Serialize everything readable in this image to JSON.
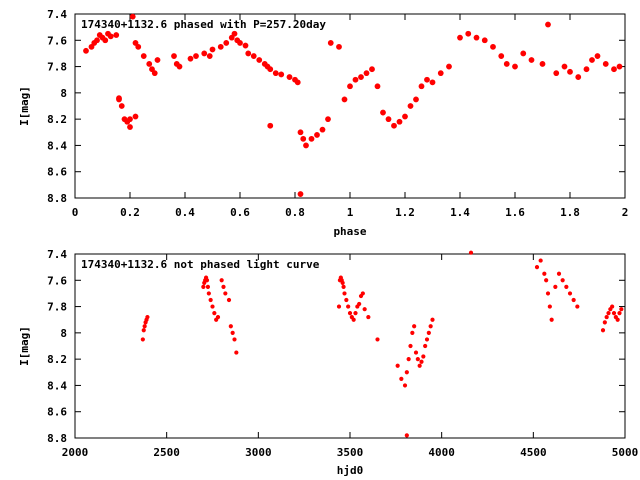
{
  "chart_data": [
    {
      "type": "scatter",
      "title": "174340+1132.6 phased with P=257.20day",
      "xlabel": "phase",
      "ylabel": "I[mag]",
      "xlim": [
        0,
        2
      ],
      "ylim": [
        7.4,
        8.8
      ],
      "y_inverted": true,
      "x_ticks": [
        "0",
        "0.2",
        "0.4",
        "0.6",
        "0.8",
        "1",
        "1.2",
        "1.4",
        "1.6",
        "1.8",
        "2"
      ],
      "y_ticks": [
        "7.4",
        "7.6",
        "7.8",
        "8",
        "8.2",
        "8.4",
        "8.6",
        "8.8"
      ],
      "grid": false,
      "color": "#ff0000",
      "series": [
        {
          "x": [
            0.04,
            0.06,
            0.07,
            0.08,
            0.09,
            0.1,
            0.11,
            0.12,
            0.13,
            0.15,
            0.16,
            0.17,
            0.18,
            0.19,
            0.2,
            0.21,
            0.22,
            0.22,
            0.23,
            0.25,
            0.27,
            0.28,
            0.29,
            0.3,
            0.36,
            0.37,
            0.38,
            0.42,
            0.44,
            0.47,
            0.49,
            0.5,
            0.53,
            0.55,
            0.57,
            0.58,
            0.59,
            0.6,
            0.62,
            0.63,
            0.65,
            0.67,
            0.69,
            0.7,
            0.71,
            0.73,
            0.75,
            0.78,
            0.8,
            0.81,
            0.82,
            0.83,
            0.84,
            0.86,
            0.88,
            0.9,
            0.92,
            0.93,
            0.96,
            0.98,
            1.0,
            1.02,
            1.04,
            1.06,
            1.08,
            1.1,
            1.12,
            1.14,
            1.16,
            1.18,
            1.2,
            1.22,
            1.24,
            1.26,
            1.28,
            1.3,
            1.33,
            1.36,
            1.4,
            1.43,
            1.46,
            1.49,
            1.52,
            1.55,
            1.57,
            1.6,
            1.63,
            1.66,
            1.7,
            1.72,
            1.75,
            1.78,
            1.8,
            1.83,
            1.86,
            1.88,
            1.9,
            1.93,
            1.96,
            1.98,
            0.82,
            0.16,
            0.2,
            0.71
          ],
          "y": [
            7.68,
            7.65,
            7.62,
            7.6,
            7.56,
            7.58,
            7.6,
            7.55,
            7.57,
            7.56,
            8.04,
            8.1,
            8.2,
            8.22,
            8.26,
            7.42,
            7.62,
            8.18,
            7.65,
            7.72,
            7.78,
            7.82,
            7.85,
            7.75,
            7.72,
            7.78,
            7.8,
            7.74,
            7.72,
            7.7,
            7.72,
            7.67,
            7.65,
            7.62,
            7.58,
            7.55,
            7.6,
            7.62,
            7.64,
            7.7,
            7.72,
            7.75,
            7.78,
            7.8,
            7.82,
            7.85,
            7.86,
            7.88,
            7.9,
            7.92,
            8.3,
            8.35,
            8.4,
            8.35,
            8.32,
            8.28,
            8.2,
            7.62,
            7.65,
            8.05,
            7.95,
            7.9,
            7.88,
            7.85,
            7.82,
            7.95,
            8.15,
            8.2,
            8.25,
            8.22,
            8.18,
            8.1,
            8.05,
            7.95,
            7.9,
            7.92,
            7.85,
            7.8,
            7.58,
            7.55,
            7.58,
            7.6,
            7.65,
            7.72,
            7.78,
            7.8,
            7.7,
            7.75,
            7.78,
            7.48,
            7.85,
            7.8,
            7.84,
            7.88,
            7.82,
            7.75,
            7.72,
            7.78,
            7.82,
            7.8,
            8.77,
            8.05,
            8.2,
            8.25
          ]
        }
      ]
    },
    {
      "type": "scatter",
      "title": "174340+1132.6 not phased light curve",
      "xlabel": "hjd0",
      "ylabel": "I[mag]",
      "xlim": [
        2000,
        5000
      ],
      "ylim": [
        7.4,
        8.8
      ],
      "y_inverted": true,
      "x_ticks": [
        "2000",
        "2500",
        "3000",
        "3500",
        "4000",
        "4500",
        "5000"
      ],
      "y_ticks": [
        "7.4",
        "7.6",
        "7.8",
        "8",
        "8.2",
        "8.4",
        "8.6",
        "8.8"
      ],
      "grid": false,
      "color": "#ff0000",
      "series": [
        {
          "x": [
            2370,
            2375,
            2380,
            2385,
            2390,
            2395,
            2700,
            2705,
            2710,
            2715,
            2720,
            2725,
            2730,
            2740,
            2750,
            2760,
            2770,
            2780,
            2800,
            2810,
            2820,
            2840,
            2850,
            2860,
            2870,
            2880,
            3440,
            3445,
            3450,
            3455,
            3460,
            3465,
            3470,
            3480,
            3490,
            3500,
            3510,
            3520,
            3530,
            3540,
            3550,
            3560,
            3570,
            3580,
            3600,
            3650,
            3760,
            3780,
            3800,
            3810,
            3820,
            3830,
            3840,
            3850,
            3860,
            3870,
            3880,
            3890,
            3900,
            3910,
            3920,
            3930,
            3940,
            3950,
            4160,
            4520,
            4540,
            4560,
            4570,
            4580,
            4590,
            4600,
            4620,
            4640,
            4660,
            4680,
            4700,
            4720,
            4740,
            4880,
            4890,
            4900,
            4910,
            4920,
            4930,
            4940,
            4950,
            4960,
            4970,
            4980,
            3810
          ],
          "y": [
            8.05,
            7.98,
            7.95,
            7.92,
            7.9,
            7.88,
            7.65,
            7.62,
            7.6,
            7.58,
            7.6,
            7.65,
            7.7,
            7.75,
            7.8,
            7.85,
            7.9,
            7.88,
            7.6,
            7.65,
            7.7,
            7.75,
            7.95,
            8.0,
            8.05,
            8.15,
            7.8,
            7.6,
            7.58,
            7.6,
            7.62,
            7.65,
            7.7,
            7.75,
            7.8,
            7.85,
            7.88,
            7.9,
            7.85,
            7.8,
            7.78,
            7.72,
            7.7,
            7.82,
            7.88,
            8.05,
            8.25,
            8.35,
            8.4,
            8.3,
            8.2,
            8.1,
            8.0,
            7.95,
            8.15,
            8.2,
            8.25,
            8.22,
            8.18,
            8.1,
            8.05,
            8.0,
            7.95,
            7.9,
            7.39,
            7.5,
            7.45,
            7.55,
            7.6,
            7.7,
            7.8,
            7.9,
            7.65,
            7.55,
            7.6,
            7.65,
            7.7,
            7.75,
            7.8,
            7.98,
            7.92,
            7.88,
            7.85,
            7.82,
            7.8,
            7.85,
            7.88,
            7.9,
            7.85,
            7.82,
            8.78
          ]
        }
      ]
    }
  ]
}
